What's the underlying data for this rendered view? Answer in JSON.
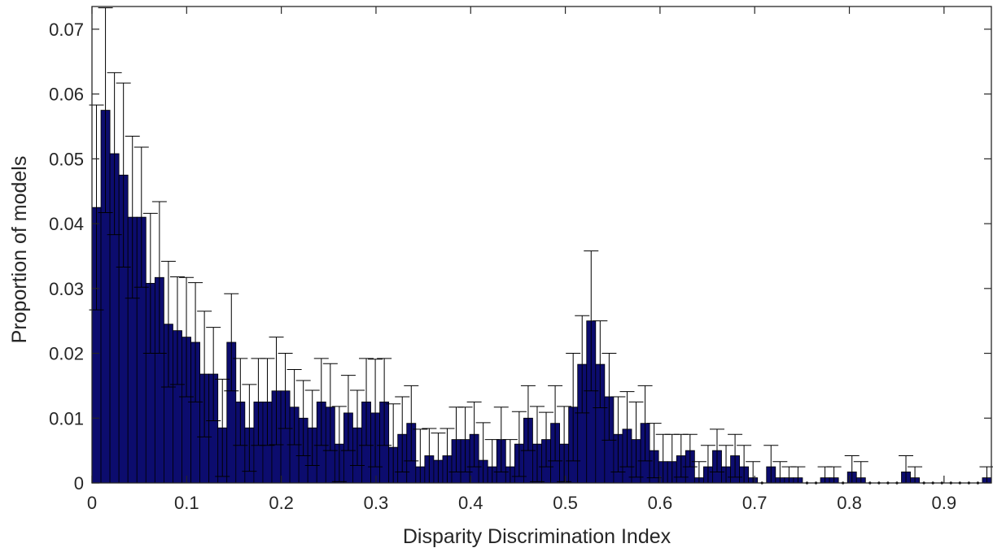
{
  "chart_data": {
    "type": "bar",
    "title": "",
    "xlabel": "Disparity Discrimination Index",
    "ylabel": "Proportion of models",
    "xlim": [
      0,
      0.95
    ],
    "ylim": [
      0,
      0.0735
    ],
    "bin_width": 0.0095,
    "grid": false,
    "legend": "none",
    "x_ticks": [
      0,
      0.1,
      0.2,
      0.3,
      0.4,
      0.5,
      0.6,
      0.7,
      0.8,
      0.9
    ],
    "x_tick_labels": [
      "0",
      "0.1",
      "0.2",
      "0.3",
      "0.4",
      "0.5",
      "0.6",
      "0.7",
      "0.8",
      "0.9"
    ],
    "y_ticks": [
      0,
      0.01,
      0.02,
      0.03,
      0.04,
      0.05,
      0.06,
      0.07
    ],
    "y_tick_labels": [
      "0",
      "0.01",
      "0.02",
      "0.03",
      "0.04",
      "0.05",
      "0.06",
      "0.07"
    ],
    "bar_color": "#0c0c6e",
    "error_color": "#000000",
    "x": [
      0.00475,
      0.01425,
      0.02375,
      0.03325,
      0.04275,
      0.05225,
      0.06175,
      0.07125,
      0.08075,
      0.09025,
      0.09975,
      0.10925,
      0.11875,
      0.12825,
      0.13775,
      0.14725,
      0.15675,
      0.16625,
      0.17575,
      0.18525,
      0.19475,
      0.20425,
      0.21375,
      0.22325,
      0.23275,
      0.24225,
      0.25175,
      0.26125,
      0.27075,
      0.28025,
      0.28975,
      0.29925,
      0.30875,
      0.31825,
      0.32775,
      0.33725,
      0.34675,
      0.35625,
      0.36575,
      0.37525,
      0.38475,
      0.39425,
      0.40375,
      0.41325,
      0.42275,
      0.43225,
      0.44175,
      0.45125,
      0.46075,
      0.47025,
      0.47975,
      0.48925,
      0.49875,
      0.50825,
      0.51775,
      0.52725,
      0.53675,
      0.54625,
      0.55575,
      0.56525,
      0.57475,
      0.58425,
      0.59375,
      0.60325,
      0.61275,
      0.62225,
      0.63175,
      0.64125,
      0.65075,
      0.66025,
      0.66975,
      0.67925,
      0.68875,
      0.69825,
      0.70775,
      0.71725,
      0.72675,
      0.73625,
      0.74575,
      0.75525,
      0.76475,
      0.77425,
      0.78375,
      0.79325,
      0.80275,
      0.81225,
      0.82175,
      0.83125,
      0.84075,
      0.85025,
      0.85975,
      0.86925,
      0.87875,
      0.88825,
      0.89775,
      0.90725,
      0.91675,
      0.92625,
      0.93575,
      0.94525
    ],
    "values": [
      0.0425,
      0.0575,
      0.0508,
      0.0475,
      0.041,
      0.041,
      0.0308,
      0.0317,
      0.0245,
      0.0235,
      0.0225,
      0.0217,
      0.0168,
      0.0168,
      0.0085,
      0.0217,
      0.0125,
      0.0085,
      0.0125,
      0.0125,
      0.0142,
      0.0142,
      0.0117,
      0.01,
      0.0085,
      0.0125,
      0.0117,
      0.006,
      0.0108,
      0.0085,
      0.0125,
      0.0108,
      0.0125,
      0.0055,
      0.0075,
      0.0092,
      0.0025,
      0.0042,
      0.0035,
      0.0042,
      0.0067,
      0.0067,
      0.0075,
      0.0035,
      0.0025,
      0.0067,
      0.0025,
      0.006,
      0.01,
      0.006,
      0.0067,
      0.0092,
      0.006,
      0.0117,
      0.0183,
      0.025,
      0.0183,
      0.0133,
      0.0075,
      0.0083,
      0.0067,
      0.0092,
      0.005,
      0.0033,
      0.0033,
      0.0042,
      0.005,
      0.0008,
      0.0025,
      0.005,
      0.0025,
      0.0042,
      0.0025,
      0.0008,
      0.0,
      0.0025,
      0.0008,
      0.0008,
      0.0008,
      0.0,
      0.0,
      0.0008,
      0.0008,
      0.0,
      0.0017,
      0.0008,
      0.0,
      0.0,
      0.0,
      0.0,
      0.0017,
      0.0008,
      0.0,
      0.0,
      0.0,
      0.0,
      0.0,
      0.0,
      0.0,
      0.0008
    ],
    "errors": [
      0.0158,
      0.0158,
      0.0125,
      0.0142,
      0.0125,
      0.0108,
      0.0108,
      0.0117,
      0.0097,
      0.0083,
      0.0092,
      0.0092,
      0.0097,
      0.0072,
      0.0075,
      0.0075,
      0.0067,
      0.0067,
      0.0067,
      0.0067,
      0.0083,
      0.0058,
      0.0058,
      0.0058,
      0.0058,
      0.0067,
      0.0067,
      0.0058,
      0.0058,
      0.0058,
      0.0067,
      0.0083,
      0.0067,
      0.0067,
      0.0058,
      0.0058,
      0.0058,
      0.0042,
      0.0042,
      0.0042,
      0.005,
      0.005,
      0.005,
      0.0058,
      0.0042,
      0.005,
      0.0042,
      0.005,
      0.005,
      0.0058,
      0.0042,
      0.0058,
      0.0058,
      0.0083,
      0.0075,
      0.0108,
      0.0067,
      0.0067,
      0.0058,
      0.0058,
      0.0058,
      0.0058,
      0.0042,
      0.0042,
      0.0042,
      0.0033,
      0.0025,
      0.0025,
      0.0033,
      0.0033,
      0.0033,
      0.0033,
      0.0033,
      0.0025,
      0.0,
      0.0033,
      0.0025,
      0.0017,
      0.0017,
      0.0,
      0.0,
      0.0017,
      0.0017,
      0.0,
      0.0025,
      0.0025,
      0.0,
      0.0,
      0.0,
      0.0,
      0.0025,
      0.0017,
      0.0,
      0.0,
      0.0,
      0.0,
      0.0,
      0.0,
      0.0,
      0.0017
    ]
  }
}
